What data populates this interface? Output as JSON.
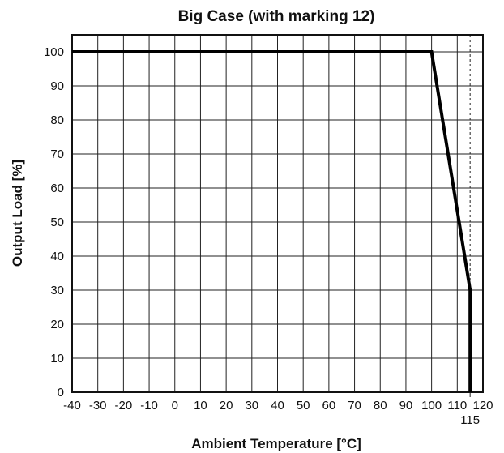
{
  "chart_data": {
    "type": "line",
    "title": "Big Case (with marking 12)",
    "xlabel": "Ambient Temperature [°C]",
    "ylabel": "Output Load [%]",
    "xlim": [
      -40,
      120
    ],
    "ylim": [
      0,
      105
    ],
    "x_ticks": [
      "-40",
      "-30",
      "-20",
      "-10",
      "0",
      "10",
      "20",
      "30",
      "40",
      "50",
      "60",
      "70",
      "80",
      "90",
      "100",
      "110",
      "120"
    ],
    "y_ticks": [
      "0",
      "10",
      "20",
      "30",
      "40",
      "50",
      "60",
      "70",
      "80",
      "90",
      "100"
    ],
    "extra_x_tick": "115",
    "grid": true,
    "series": [
      {
        "x": [
          -40,
          100,
          115,
          115
        ],
        "y": [
          100,
          100,
          30,
          0
        ]
      }
    ]
  }
}
